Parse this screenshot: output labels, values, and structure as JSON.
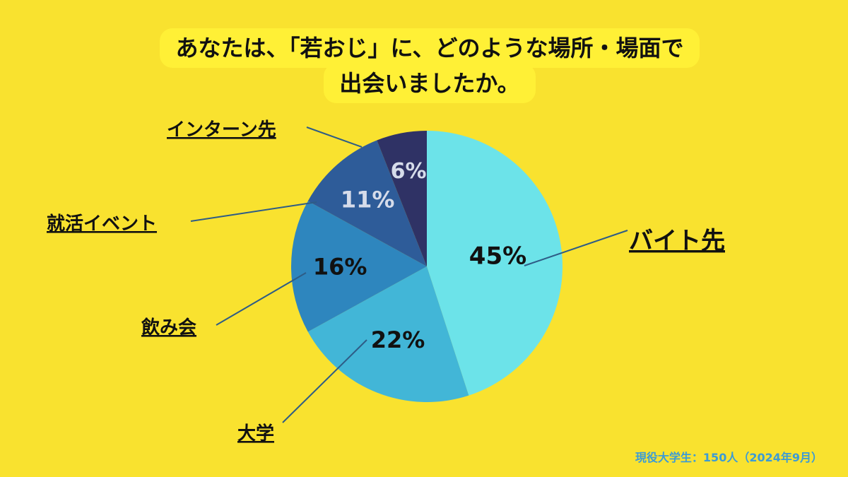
{
  "chart_data": {
    "type": "pie",
    "title_lines": [
      "あなたは、「若おじ」に、どのような場所・場面で",
      "出会いましたか。"
    ],
    "slices": [
      {
        "name": "バイト先",
        "value": 45,
        "label": "45%",
        "color": "#6CE3E9",
        "text_color": "#111111"
      },
      {
        "name": "大学",
        "value": 22,
        "label": "22%",
        "color": "#42B6D7",
        "text_color": "#111111"
      },
      {
        "name": "飲み会",
        "value": 16,
        "label": "16%",
        "color": "#2E86BE",
        "text_color": "#111111"
      },
      {
        "name": "就活イベント",
        "value": 11,
        "label": "11%",
        "color": "#2E5C99",
        "text_color": "#D6DCEA"
      },
      {
        "name": "インターン先",
        "value": 6,
        "label": "6%",
        "color": "#2F3265",
        "text_color": "#D6DCEA"
      }
    ],
    "start": "12 o'clock",
    "direction": "clockwise",
    "footnote": "現役大学生：150人（2024年9月）",
    "leader_color": "#2E5C86"
  }
}
